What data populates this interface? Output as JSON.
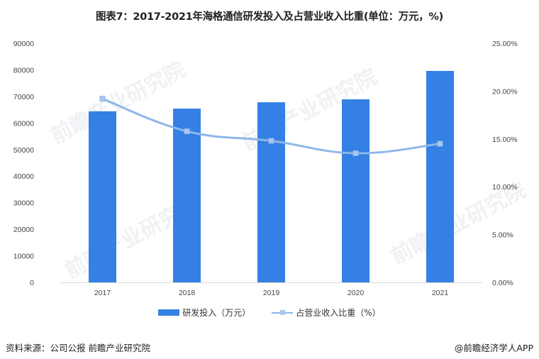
{
  "title": "图表7：2017-2021年海格通信研发投入及占营业收入比重(单位：万元，%)",
  "chart_data": {
    "type": "bar+line",
    "title": "图表7：2017-2021年海格通信研发投入及占营业收入比重(单位：万元，%)",
    "categories": [
      "2017",
      "2018",
      "2019",
      "2020",
      "2021"
    ],
    "series": [
      {
        "name": "研发投入（万元）",
        "type": "bar",
        "axis": "left",
        "color": "#3480e4",
        "values": [
          64400,
          65400,
          67800,
          68900,
          79600
        ]
      },
      {
        "name": "占营业收入比重（%）",
        "type": "line",
        "axis": "right",
        "color": "#8db7e9",
        "values": [
          19.2,
          15.8,
          14.8,
          13.5,
          14.5
        ]
      }
    ],
    "left_axis": {
      "ticks": [
        "0",
        "10000",
        "20000",
        "30000",
        "40000",
        "50000",
        "60000",
        "70000",
        "80000",
        "90000"
      ],
      "ylim": [
        0,
        90000
      ]
    },
    "right_axis": {
      "ticks": [
        "0.00%",
        "5.00%",
        "10.00%",
        "15.00%",
        "20.00%",
        "25.00%"
      ],
      "ylim": [
        0,
        25
      ]
    },
    "grid": false,
    "legend_position": "bottom"
  },
  "legend": {
    "bar_label": "研发投入（万元）",
    "line_label": "占营业收入比重（%）"
  },
  "footer": {
    "source": "资料来源：公司公报 前瞻产业研究院",
    "credit": "@前瞻经济学人APP"
  },
  "watermark": "前瞻产业研究院"
}
